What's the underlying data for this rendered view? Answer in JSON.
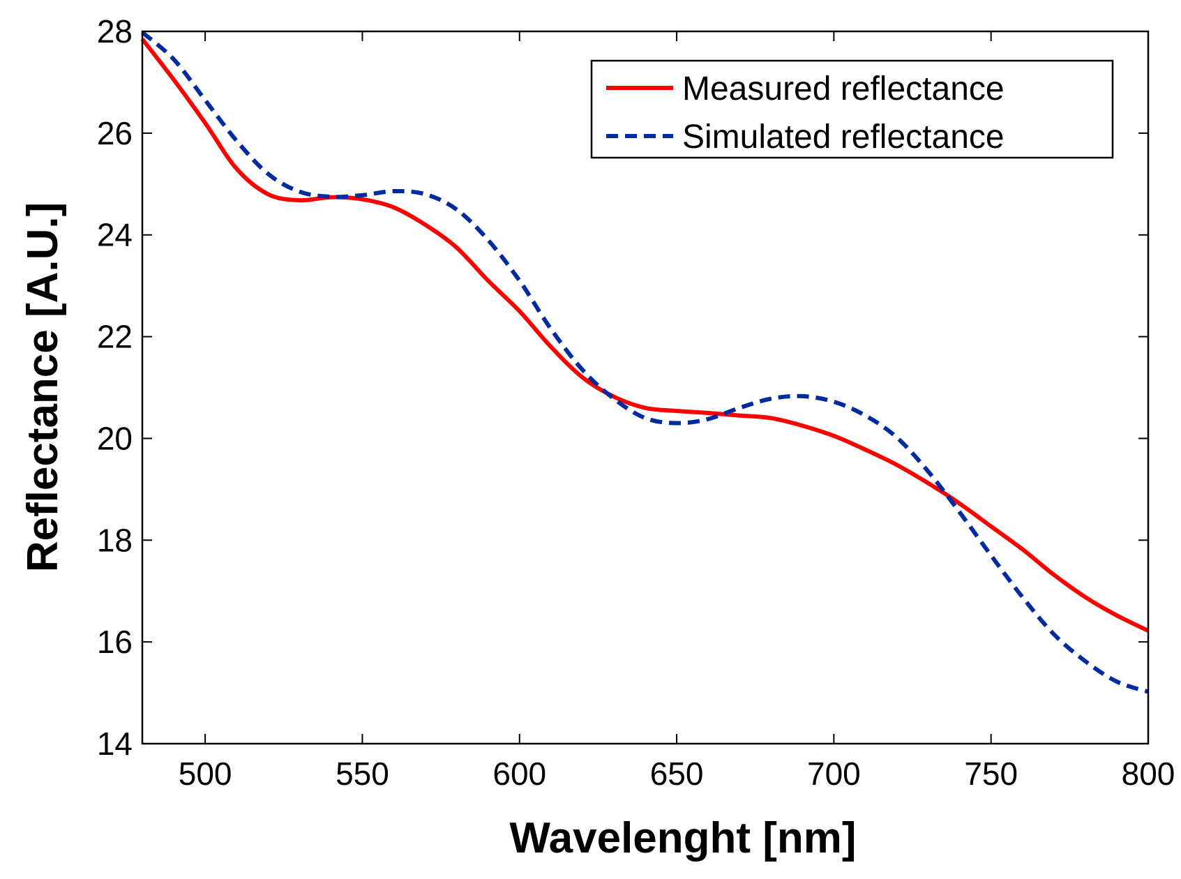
{
  "chart_data": {
    "type": "line",
    "title": "",
    "xlabel": "Wavelenght [nm]",
    "ylabel": "Reflectance [A.U.]",
    "xlim": [
      480,
      800
    ],
    "ylim": [
      14,
      28
    ],
    "xticks": [
      500,
      550,
      600,
      650,
      700,
      750,
      800
    ],
    "yticks": [
      14,
      16,
      18,
      20,
      22,
      24,
      26,
      28
    ],
    "grid": false,
    "legend_position": "top-right",
    "series": [
      {
        "name": "Measured reflectance",
        "color": "#ff0000",
        "style": "solid",
        "x": [
          480,
          490,
          500,
          510,
          520,
          530,
          540,
          550,
          560,
          570,
          580,
          590,
          600,
          610,
          620,
          630,
          640,
          650,
          660,
          670,
          680,
          690,
          700,
          710,
          720,
          730,
          740,
          750,
          760,
          770,
          780,
          790,
          800
        ],
        "y": [
          27.85,
          27.05,
          26.2,
          25.3,
          24.8,
          24.68,
          24.74,
          24.7,
          24.54,
          24.2,
          23.75,
          23.1,
          22.5,
          21.8,
          21.2,
          20.82,
          20.6,
          20.54,
          20.5,
          20.45,
          20.4,
          20.25,
          20.05,
          19.78,
          19.48,
          19.12,
          18.72,
          18.27,
          17.82,
          17.32,
          16.88,
          16.52,
          16.22
        ]
      },
      {
        "name": "Simulated reflectance",
        "color": "#002ba0",
        "style": "dashed",
        "x": [
          480,
          490,
          500,
          510,
          520,
          530,
          540,
          550,
          560,
          570,
          580,
          590,
          600,
          610,
          620,
          630,
          640,
          650,
          660,
          670,
          680,
          690,
          700,
          710,
          720,
          730,
          740,
          750,
          760,
          770,
          780,
          790,
          800
        ],
        "y": [
          27.98,
          27.45,
          26.65,
          25.85,
          25.2,
          24.85,
          24.75,
          24.78,
          24.86,
          24.8,
          24.5,
          23.9,
          23.1,
          22.15,
          21.35,
          20.78,
          20.4,
          20.3,
          20.38,
          20.6,
          20.78,
          20.83,
          20.72,
          20.45,
          20.02,
          19.35,
          18.55,
          17.7,
          16.88,
          16.15,
          15.62,
          15.22,
          15.02
        ]
      }
    ]
  }
}
